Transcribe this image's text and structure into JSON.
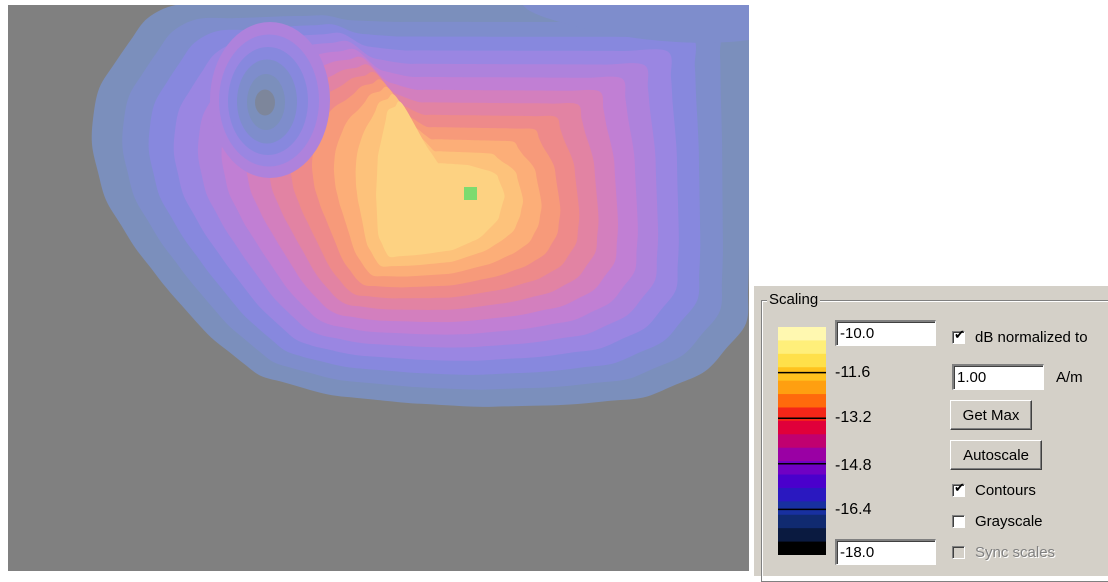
{
  "plot": {
    "background": "#808080",
    "marker_color": "#7ddb6f",
    "contour_colors": [
      "#7b8fbc",
      "#7e8dcc",
      "#8788de",
      "#9a86e2",
      "#ae82dc",
      "#c17fd4",
      "#d37fbe",
      "#e283a3",
      "#ee8a8a",
      "#f79a7a",
      "#fcae78",
      "#fdc27b",
      "#fdd282"
    ]
  },
  "scaling": {
    "title": "Scaling",
    "max_value": "-10.0",
    "min_value": "-18.0",
    "ticks": [
      "-11.6",
      "-13.2",
      "-14.8",
      "-16.4"
    ],
    "colorbar_colors": [
      "#fff8b0",
      "#ffef7a",
      "#ffe04a",
      "#ffc21e",
      "#ff9f10",
      "#ff6a0c",
      "#f42618",
      "#e0003a",
      "#c00070",
      "#9a00a4",
      "#7000c4",
      "#4a00cc",
      "#2a18c0",
      "#1830a0",
      "#102a70",
      "#0a1a40",
      "#000000"
    ],
    "db_normalized": {
      "label": "dB normalized to",
      "checked": "✔"
    },
    "norm_value": "1.00",
    "norm_unit": "A/m",
    "get_max_label": "Get Max",
    "autoscale_label": "Autoscale",
    "contours": {
      "label": "Contours",
      "checked": "✔"
    },
    "grayscale": {
      "label": "Grayscale"
    },
    "sync_scales": {
      "label": "Sync scales"
    }
  }
}
